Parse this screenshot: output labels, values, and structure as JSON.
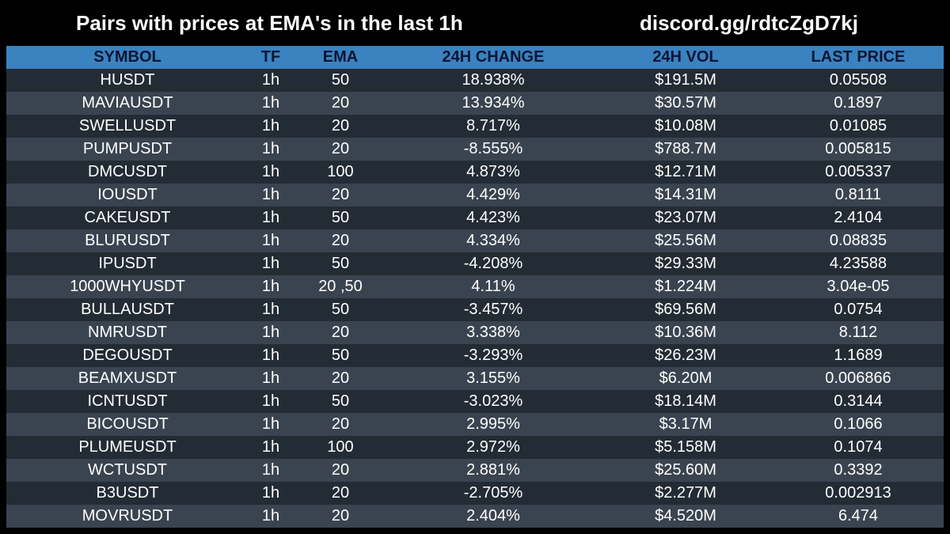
{
  "header": {
    "title": "Pairs with prices at EMA's in the last 1h",
    "discord": "discord.gg/rdtcZgD7kj"
  },
  "colors": {
    "background": "#000000",
    "header_row": "#3a82c0",
    "header_text": "#0b1633",
    "row_dark": "#232b34",
    "row_light": "#3a4450"
  },
  "table": {
    "columns": [
      "SYMBOL",
      "TF",
      "EMA",
      "24H CHANGE",
      "24H VOL",
      "LAST PRICE"
    ],
    "rows": [
      [
        "HUSDT",
        "1h",
        "50",
        "18.938%",
        "$191.5M",
        "0.05508"
      ],
      [
        "MAVIAUSDT",
        "1h",
        "20",
        "13.934%",
        "$30.57M",
        "0.1897"
      ],
      [
        "SWELLUSDT",
        "1h",
        "20",
        "8.717%",
        "$10.08M",
        "0.01085"
      ],
      [
        "PUMPUSDT",
        "1h",
        "20",
        "-8.555%",
        "$788.7M",
        "0.005815"
      ],
      [
        "DMCUSDT",
        "1h",
        "100",
        "4.873%",
        "$12.71M",
        "0.005337"
      ],
      [
        "IOUSDT",
        "1h",
        "20",
        "4.429%",
        "$14.31M",
        "0.8111"
      ],
      [
        "CAKEUSDT",
        "1h",
        "50",
        "4.423%",
        "$23.07M",
        "2.4104"
      ],
      [
        "BLURUSDT",
        "1h",
        "20",
        "4.334%",
        "$25.56M",
        "0.08835"
      ],
      [
        "IPUSDT",
        "1h",
        "50",
        "-4.208%",
        "$29.33M",
        "4.23588"
      ],
      [
        "1000WHYUSDT",
        "1h",
        "20 ,50",
        "4.11%",
        "$1.224M",
        "3.04e-05"
      ],
      [
        "BULLAUSDT",
        "1h",
        "50",
        "-3.457%",
        "$69.56M",
        "0.0754"
      ],
      [
        "NMRUSDT",
        "1h",
        "20",
        "3.338%",
        "$10.36M",
        "8.112"
      ],
      [
        "DEGOUSDT",
        "1h",
        "50",
        "-3.293%",
        "$26.23M",
        "1.1689"
      ],
      [
        "BEAMXUSDT",
        "1h",
        "20",
        "3.155%",
        "$6.20M",
        "0.006866"
      ],
      [
        "ICNTUSDT",
        "1h",
        "50",
        "-3.023%",
        "$18.14M",
        "0.3144"
      ],
      [
        "BICOUSDT",
        "1h",
        "20",
        "2.995%",
        "$3.17M",
        "0.1066"
      ],
      [
        "PLUMEUSDT",
        "1h",
        "100",
        "2.972%",
        "$5.158M",
        "0.1074"
      ],
      [
        "WCTUSDT",
        "1h",
        "20",
        "2.881%",
        "$25.60M",
        "0.3392"
      ],
      [
        "B3USDT",
        "1h",
        "20",
        "-2.705%",
        "$2.277M",
        "0.002913"
      ],
      [
        "MOVRUSDT",
        "1h",
        "20",
        "2.404%",
        "$4.520M",
        "6.474"
      ]
    ]
  }
}
